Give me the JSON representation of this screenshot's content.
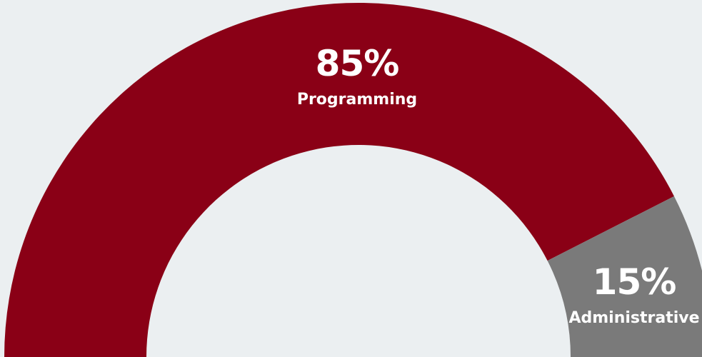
{
  "chart_data": {
    "type": "pie",
    "subtype": "half-donut",
    "slices": [
      {
        "label": "Programming",
        "value": 85,
        "value_label": "85%",
        "color": "#8A0016"
      },
      {
        "label": "Administrative",
        "value": 15,
        "value_label": "15%",
        "color": "#7A7A7A"
      }
    ],
    "total": 100,
    "background_color": "#EBEFF1",
    "inner_color": "#EBEFF1",
    "label_color": "#FFFFFF"
  }
}
